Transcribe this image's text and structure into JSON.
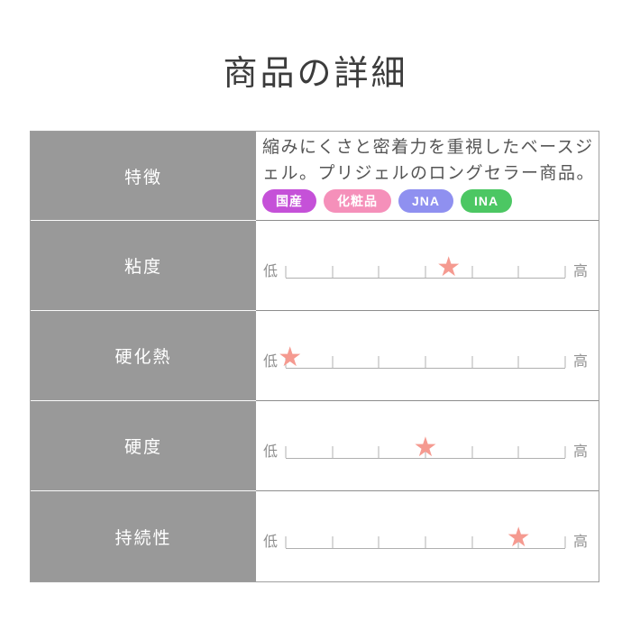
{
  "page": {
    "title": "商品の詳細"
  },
  "detail_table": {
    "feature_row": {
      "label": "特徴",
      "description": "縮みにくさと密着力を重視したベースジェル。プリジェルのロングセラー商品。",
      "badges": [
        {
          "label": "国産",
          "color": "#c551d8"
        },
        {
          "label": "化粧品",
          "color": "#f590ba"
        },
        {
          "label": "JNA",
          "color": "#8f90f0"
        },
        {
          "label": "INA",
          "color": "#4cc763"
        }
      ]
    },
    "scales": {
      "low_label": "低",
      "high_label": "高",
      "tick_count": 7,
      "star_glyph": "★",
      "star_color": "#f59a90",
      "rows": [
        {
          "label": "粘度",
          "value_percent": 58.3
        },
        {
          "label": "硬化熱",
          "value_percent": 1.5
        },
        {
          "label": "硬度",
          "value_percent": 50
        },
        {
          "label": "持続性",
          "value_percent": 83.3
        }
      ]
    }
  }
}
